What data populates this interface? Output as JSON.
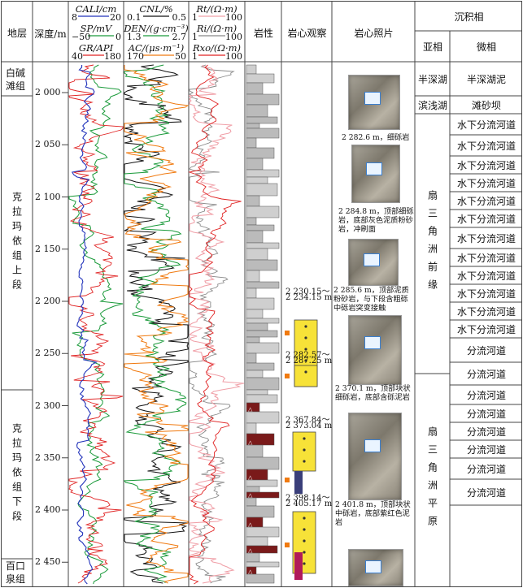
{
  "header": {
    "formation": "地层",
    "depth": "深度/m",
    "lithology": "岩性",
    "core_obs": "岩心观察",
    "core_photo": "岩心照片",
    "facies": "沉积相",
    "subfacies": "亚相",
    "microfacies": "微相"
  },
  "logs": {
    "track1": [
      {
        "name": "CALI/cm",
        "min": "8",
        "max": "20",
        "color": "#2233bb"
      },
      {
        "name": "SP/mV",
        "min": "−50",
        "max": "0",
        "color": "#1a9a3a"
      },
      {
        "name": "GR/API",
        "min": "40",
        "max": "180",
        "color": "#e02020"
      }
    ],
    "track2": [
      {
        "name": "CNL/%",
        "min": "0.1",
        "max": "0.5",
        "color": "#111111"
      },
      {
        "name": "DEN/(g·cm⁻³)",
        "min": "1.3",
        "max": "2.7",
        "color": "#1a9a3a"
      },
      {
        "name": "AC/(μs·m⁻¹)",
        "min": "170",
        "max": "50",
        "color": "#f07a10"
      }
    ],
    "track3": [
      {
        "name": "Rt/(Ω·m)",
        "min": "1",
        "max": "100",
        "color": "#f0a0a8"
      },
      {
        "name": "Ri/(Ω·m)",
        "min": "1",
        "max": "100",
        "color": "#888888"
      },
      {
        "name": "Rxo/(Ω·m)",
        "min": "1",
        "max": "100",
        "color": "#e02020"
      }
    ]
  },
  "formations": [
    "白碱滩组",
    "克拉玛依组上段",
    "克拉玛依组下段",
    "百口泉组"
  ],
  "depth_ticks": [
    "2 000",
    "2 050",
    "2 100",
    "2 150",
    "2 200",
    "2 250",
    "2 300",
    "2 350",
    "2 400",
    "2 450"
  ],
  "core_intervals": [
    {
      "top": "2 230.15～",
      "bottom": "2 234.15 m"
    },
    {
      "top": "2 282.57～",
      "bottom": "2 287.25 m"
    },
    {
      "top": "2 367.84～",
      "bottom": "2 373.04 m"
    },
    {
      "top": "2 398.14～",
      "bottom": "2 405.17 m"
    }
  ],
  "photo_captions": [
    "2 282.6 m，细砾岩",
    "2 284.8 m，顶部细砾岩，底部灰色泥质粉砂岩，冲刷面",
    "2 285.6 m，顶部泥质粉砂岩，与下段含粗砾中砾岩突变接触",
    "2 370.1 m，顶部块状细砾岩，底部含砾泥岩",
    "2 401.8 m，顶部块状中砾岩，底部紫红色泥岩"
  ],
  "subfacies": [
    "半深湖",
    "滨浅湖",
    "扇三角洲前缘",
    "扇三角洲平原"
  ],
  "microfacies": [
    "半深湖泥",
    "滩砂坝",
    "水下分流河道",
    "水下分流河道",
    "水下分流河道",
    "水下分流河道",
    "水下分流河道",
    "水下分流河道",
    "水下分流河道",
    "水下分流河道",
    "水下分流河道",
    "水下分流河道",
    "水下分流河道",
    "水下分流河道",
    "分流河道",
    "分流河道",
    "分流河道",
    "分流河道",
    "分流河道",
    "分流河道",
    "分流河道",
    "分流河道"
  ]
}
